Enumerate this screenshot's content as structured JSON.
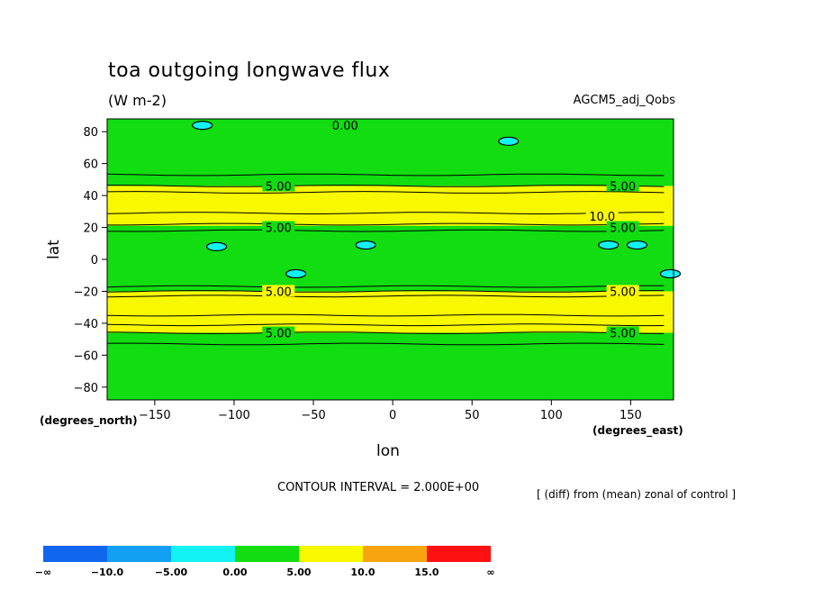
{
  "header": {
    "title": "toa outgoing longwave flux",
    "units": "(W m-2)",
    "dataset": "AGCM5_adj_Qobs"
  },
  "footer": {
    "contour_interval": "CONTOUR INTERVAL = 2.000E+00",
    "note": "[ (diff) from (mean) zonal of control ]"
  },
  "chart_data": {
    "type": "heatmap",
    "title": "toa outgoing longwave flux",
    "xlabel": "lon",
    "ylabel": "lat",
    "x_units": "(degrees_east)",
    "y_units": "(degrees_north)",
    "xlim": [
      -180,
      177
    ],
    "ylim": [
      -88,
      88
    ],
    "x_ticks": [
      -150,
      -100,
      -50,
      0,
      50,
      100,
      150
    ],
    "x_tick_labels": [
      "−150",
      "−100",
      "−50",
      "0",
      "50",
      "100",
      "150"
    ],
    "y_ticks": [
      80,
      60,
      40,
      20,
      0,
      -20,
      -40,
      -60,
      -80
    ],
    "y_tick_labels": [
      "80",
      "60",
      "40",
      "20",
      "0",
      "−20",
      "−40",
      "−60",
      "−80"
    ],
    "background_band": "0.00 to 5.00",
    "zonal_bands": [
      {
        "lat_min": 21,
        "lat_max": 46,
        "range": "5.00 to 10.0"
      },
      {
        "lat_min": -46,
        "lat_max": -20,
        "range": "5.00 to 10.0"
      }
    ],
    "contour_lines_lat": [
      53,
      46,
      42,
      29,
      22,
      18,
      -17,
      -20,
      -23,
      -35,
      -41,
      -46,
      -53
    ],
    "negative_patches": [
      {
        "lon": -120,
        "lat": 84
      },
      {
        "lon": 73,
        "lat": 74
      },
      {
        "lon": -111,
        "lat": 8
      },
      {
        "lon": -17,
        "lat": 9
      },
      {
        "lon": 136,
        "lat": 9
      },
      {
        "lon": 154,
        "lat": 9
      },
      {
        "lon": -61,
        "lat": -9
      },
      {
        "lon": 175,
        "lat": -9
      }
    ],
    "contour_labels": [
      {
        "text": "0.00",
        "lon": -30,
        "lat": 84
      },
      {
        "text": "5.00",
        "lon": -72,
        "lat": 46
      },
      {
        "text": "5.00",
        "lon": 145,
        "lat": 46
      },
      {
        "text": "10.0",
        "lon": 132,
        "lat": 27
      },
      {
        "text": "5.00",
        "lon": -72,
        "lat": 20
      },
      {
        "text": "5.00",
        "lon": 145,
        "lat": 20
      },
      {
        "text": "5.00",
        "lon": -72,
        "lat": -20
      },
      {
        "text": "5.00",
        "lon": 145,
        "lat": -20
      },
      {
        "text": "5.00",
        "lon": -72,
        "lat": -46
      },
      {
        "text": "5.00",
        "lon": 145,
        "lat": -46
      }
    ],
    "colorbar": {
      "labels": [
        "−∞",
        "−10.0",
        "−5.00",
        "0.00",
        "5.00",
        "10.0",
        "15.0",
        "∞"
      ],
      "colors": [
        "#1166ee",
        "#11a0f2",
        "#11f2f2",
        "#11dd11",
        "#f8f800",
        "#f8a411",
        "#ff1111"
      ]
    }
  }
}
